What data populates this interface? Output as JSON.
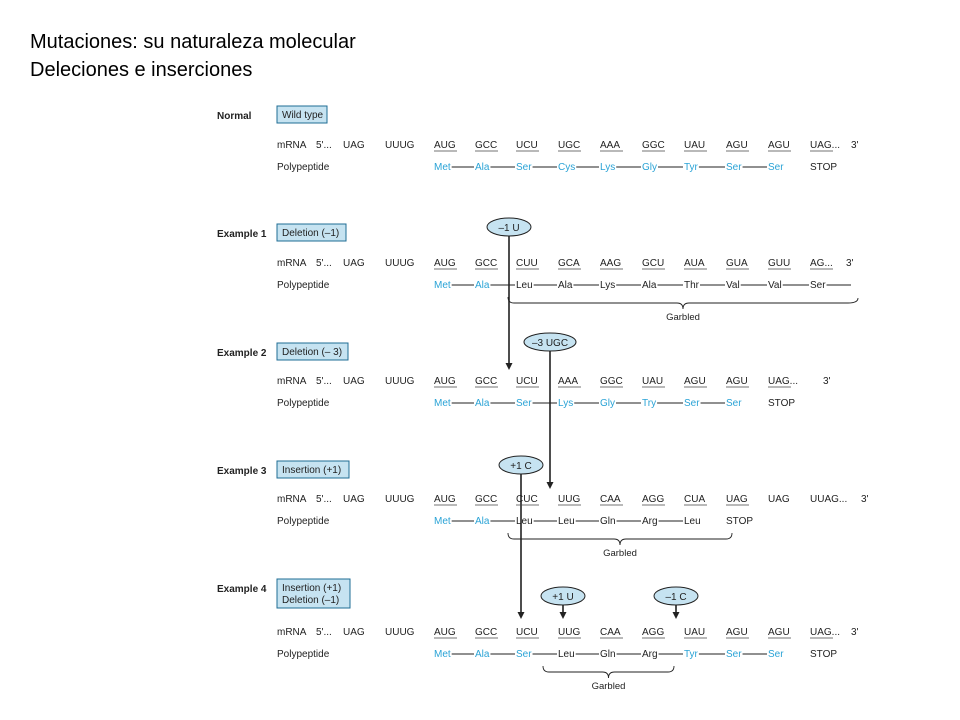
{
  "slide": {
    "title_line1": "Mutaciones: su naturaleza molecular",
    "title_line2": "Deleciones e inserciones"
  },
  "colors": {
    "box_fill": "#c6e3f1",
    "box_stroke": "#1f6d94",
    "amino_normal": "#2aa3d6",
    "text": "#222222"
  },
  "labels": {
    "mrna": "mRNA",
    "five_prime": "5'...",
    "three_prime": "3'",
    "polypeptide": "Polypeptide",
    "garbled": "Garbled"
  },
  "panels": [
    {
      "name": "Normal",
      "box": [
        "Wild type"
      ],
      "mutations": [],
      "codons": [
        "UAG",
        "UUUG",
        "AUG",
        "GCC",
        "UCU",
        "UGC",
        "AAA",
        "GGC",
        "UAU",
        "AGU",
        "AGU",
        "UAG..."
      ],
      "underlined": [
        2,
        3,
        4,
        5,
        6,
        7,
        8,
        9,
        10,
        11
      ],
      "aminos": [
        {
          "text": "Met",
          "normal": true
        },
        {
          "text": "Ala",
          "normal": true
        },
        {
          "text": "Ser",
          "normal": true
        },
        {
          "text": "Cys",
          "normal": true
        },
        {
          "text": "Lys",
          "normal": true
        },
        {
          "text": "Gly",
          "normal": true
        },
        {
          "text": "Tyr",
          "normal": true
        },
        {
          "text": "Ser",
          "normal": true
        },
        {
          "text": "Ser",
          "normal": true
        },
        {
          "text": "STOP",
          "normal": false
        }
      ],
      "has_dash_after_last": false,
      "garbled": null
    },
    {
      "name": "Example 1",
      "box": [
        "Deletion (–1)"
      ],
      "mutations": [
        {
          "label": "–1 U"
        }
      ],
      "codons": [
        "UAG",
        "UUUG",
        "AUG",
        "GCC",
        "CUU",
        "GCA",
        "AAG",
        "GCU",
        "AUA",
        "GUA",
        "GUU",
        "AG..."
      ],
      "underlined": [
        2,
        3,
        4,
        5,
        6,
        7,
        8,
        9,
        10,
        11
      ],
      "aminos": [
        {
          "text": "Met",
          "normal": true
        },
        {
          "text": "Ala",
          "normal": true
        },
        {
          "text": "Leu",
          "normal": false
        },
        {
          "text": "Ala",
          "normal": false
        },
        {
          "text": "Lys",
          "normal": false
        },
        {
          "text": "Ala",
          "normal": false
        },
        {
          "text": "Thr",
          "normal": false
        },
        {
          "text": "Val",
          "normal": false
        },
        {
          "text": "Val",
          "normal": false
        },
        {
          "text": "Ser",
          "normal": false
        }
      ],
      "has_dash_after_last": true,
      "garbled": {
        "open_right": true
      }
    },
    {
      "name": "Example 2",
      "box": [
        "Deletion (– 3)"
      ],
      "mutations": [
        {
          "label": "–3 UGC"
        }
      ],
      "codons": [
        "UAG",
        "UUUG",
        "AUG",
        "GCC",
        "UCU",
        "AAA",
        "GGC",
        "UAU",
        "AGU",
        "AGU",
        "UAG..."
      ],
      "underlined": [
        2,
        3,
        4,
        5,
        6,
        7,
        8,
        9,
        10
      ],
      "aminos": [
        {
          "text": "Met",
          "normal": true
        },
        {
          "text": "Ala",
          "normal": true
        },
        {
          "text": "Ser",
          "normal": true
        },
        {
          "text": "Lys",
          "normal": true
        },
        {
          "text": "Gly",
          "normal": true
        },
        {
          "text": "Try",
          "normal": true
        },
        {
          "text": "Ser",
          "normal": true
        },
        {
          "text": "Ser",
          "normal": true
        },
        {
          "text": "STOP",
          "normal": false
        }
      ],
      "has_dash_after_last": false,
      "garbled": null
    },
    {
      "name": "Example 3",
      "box": [
        "Insertion (+1)"
      ],
      "mutations": [
        {
          "label": "+1 C"
        }
      ],
      "codons": [
        "UAG",
        "UUUG",
        "AUG",
        "GCC",
        "CUC",
        "UUG",
        "CAA",
        "AGG",
        "CUA",
        "UAG",
        "UAG",
        "UUAG..."
      ],
      "underlined": [
        2,
        3,
        4,
        5,
        6,
        7,
        8,
        9
      ],
      "aminos": [
        {
          "text": "Met",
          "normal": true
        },
        {
          "text": "Ala",
          "normal": true
        },
        {
          "text": "Leu",
          "normal": false
        },
        {
          "text": "Leu",
          "normal": false
        },
        {
          "text": "Gln",
          "normal": false
        },
        {
          "text": "Arg",
          "normal": false
        },
        {
          "text": "Leu",
          "normal": false
        },
        {
          "text": "STOP",
          "normal": false
        }
      ],
      "has_dash_after_last": false,
      "garbled": {
        "open_right": false
      }
    },
    {
      "name": "Example 4",
      "box": [
        "Insertion (+1)",
        "Deletion  (–1)"
      ],
      "mutations": [
        {
          "label": "+1 U"
        },
        {
          "label": "–1 C"
        }
      ],
      "codons": [
        "UAG",
        "UUUG",
        "AUG",
        "GCC",
        "UCU",
        "UUG",
        "CAA",
        "AGG",
        "UAU",
        "AGU",
        "AGU",
        "UAG..."
      ],
      "underlined": [
        2,
        3,
        4,
        5,
        6,
        7,
        8,
        9,
        10,
        11
      ],
      "aminos": [
        {
          "text": "Met",
          "normal": true
        },
        {
          "text": "Ala",
          "normal": true
        },
        {
          "text": "Ser",
          "normal": true
        },
        {
          "text": "Leu",
          "normal": false
        },
        {
          "text": "Gln",
          "normal": false
        },
        {
          "text": "Arg",
          "normal": false
        },
        {
          "text": "Tyr",
          "normal": true
        },
        {
          "text": "Ser",
          "normal": true
        },
        {
          "text": "Ser",
          "normal": true
        },
        {
          "text": "STOP",
          "normal": false
        }
      ],
      "has_dash_after_last": false,
      "garbled": {
        "open_right": false
      }
    }
  ]
}
